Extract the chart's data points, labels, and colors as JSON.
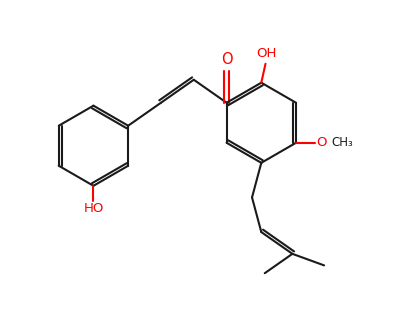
{
  "bg_color": "#ffffff",
  "bond_color": "#1a1a1a",
  "heteroatom_color": "#ff0000",
  "line_width": 1.5,
  "font_size": 9.5,
  "fig_width": 4.02,
  "fig_height": 3.21,
  "dpi": 100,
  "xlim": [
    -1.0,
    8.5
  ],
  "ylim": [
    -3.2,
    3.5
  ]
}
